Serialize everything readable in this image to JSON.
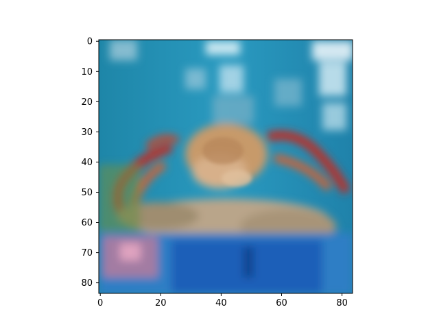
{
  "figure": {
    "type": "image-plot",
    "image_description_icon": "photo-icon",
    "x_ticks": [
      "0",
      "20",
      "40",
      "60",
      "80"
    ],
    "y_ticks": [
      "0",
      "10",
      "20",
      "30",
      "40",
      "50",
      "60",
      "70",
      "80"
    ]
  },
  "chart_data": {
    "type": "heatmap",
    "title": "",
    "xlabel": "",
    "ylabel": "",
    "xlim": [
      -0.5,
      83.5
    ],
    "ylim": [
      83.5,
      -0.5
    ],
    "x_ticks": [
      0,
      20,
      40,
      60,
      80
    ],
    "y_ticks": [
      0,
      10,
      20,
      30,
      40,
      50,
      60,
      70,
      80
    ],
    "grid": false
  },
  "colors": {
    "tank_blue": "#1f8fb5",
    "deep_blue": "#1a5fb8",
    "crab_orange": "#c9643a",
    "crab_red": "#b8322a",
    "shell_tan": "#c79a6a",
    "rock_beige": "#b9a58a"
  }
}
